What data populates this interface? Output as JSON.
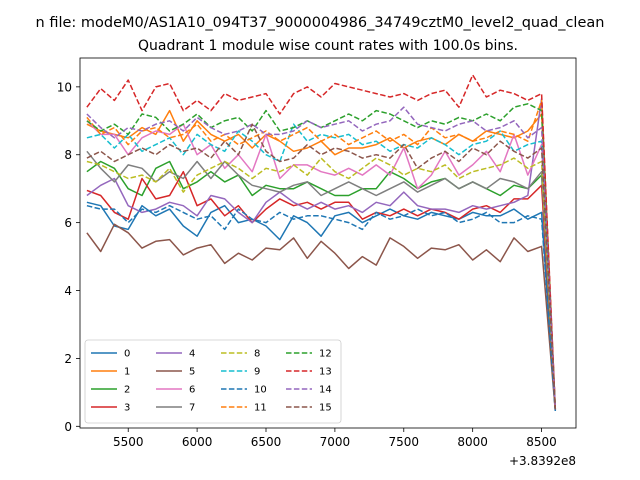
{
  "chart_data": {
    "type": "line",
    "suptitle": "n file: modeM0/AS1A10_094T37_9000004986_34749cztM0_level2_quad_clean",
    "title": "Quadrant 1 module wise count rates with 100.0s bins.",
    "xlabel": "",
    "ylabel": "",
    "x_offset_label": "+3.8392e8",
    "xlim": [
      5150,
      8750
    ],
    "ylim": [
      -0.05,
      10.85
    ],
    "xticks": [
      5500,
      6000,
      6500,
      7000,
      7500,
      8000,
      8500
    ],
    "yticks": [
      0,
      2,
      4,
      6,
      8,
      10
    ],
    "grid": false,
    "legend": {
      "placement": "lower-left",
      "columns": 4
    },
    "x": [
      5200,
      5300,
      5400,
      5500,
      5600,
      5700,
      5800,
      5900,
      6000,
      6100,
      6200,
      6300,
      6400,
      6500,
      6600,
      6700,
      6800,
      6900,
      7000,
      7100,
      7200,
      7300,
      7400,
      7500,
      7600,
      7700,
      7800,
      7900,
      8000,
      8100,
      8200,
      8300,
      8400,
      8500,
      8600
    ],
    "series": [
      {
        "name": "0",
        "color": "#1f77b4",
        "dash": false,
        "values": [
          6.6,
          6.5,
          5.9,
          5.8,
          6.5,
          6.2,
          6.4,
          5.9,
          5.6,
          6.3,
          6.5,
          6.0,
          6.1,
          5.9,
          5.5,
          6.2,
          6.0,
          5.6,
          6.2,
          6.3,
          6.0,
          6.2,
          6.4,
          6.2,
          6.1,
          6.3,
          6.2,
          6.1,
          6.3,
          6.2,
          6.2,
          6.4,
          6.1,
          6.3,
          0.45
        ]
      },
      {
        "name": "1",
        "color": "#ff7f0e",
        "dash": false,
        "values": [
          8.9,
          8.7,
          8.6,
          8.5,
          8.8,
          8.6,
          9.3,
          8.4,
          9.0,
          8.6,
          8.4,
          8.6,
          8.2,
          8.6,
          8.4,
          8.1,
          8.2,
          8.4,
          8.0,
          8.2,
          8.2,
          8.3,
          8.5,
          8.2,
          8.4,
          8.5,
          8.3,
          8.6,
          8.4,
          8.7,
          8.6,
          8.5,
          8.7,
          9.2,
          0.5
        ]
      },
      {
        "name": "2",
        "color": "#2ca02c",
        "dash": false,
        "values": [
          7.5,
          7.8,
          7.6,
          7.0,
          6.8,
          7.6,
          7.8,
          7.0,
          7.2,
          7.5,
          7.2,
          7.4,
          6.8,
          7.1,
          7.0,
          7.0,
          7.2,
          7.0,
          6.8,
          6.8,
          7.0,
          7.0,
          7.5,
          7.3,
          7.0,
          7.2,
          7.3,
          7.0,
          7.2,
          7.0,
          6.8,
          7.1,
          7.0,
          7.4,
          0.5
        ]
      },
      {
        "name": "3",
        "color": "#d62728",
        "dash": false,
        "values": [
          6.95,
          6.8,
          6.3,
          6.1,
          7.3,
          6.7,
          6.8,
          7.5,
          6.5,
          6.7,
          6.2,
          6.5,
          6.0,
          6.4,
          6.7,
          6.5,
          6.6,
          6.4,
          6.6,
          6.6,
          6.1,
          6.3,
          6.2,
          6.4,
          6.2,
          6.4,
          6.3,
          6.1,
          6.4,
          6.5,
          6.3,
          6.7,
          6.7,
          7.1,
          0.5
        ]
      },
      {
        "name": "4",
        "color": "#9467bd",
        "dash": false,
        "values": [
          6.8,
          7.1,
          7.3,
          6.5,
          6.3,
          6.4,
          6.6,
          6.5,
          6.2,
          6.8,
          6.7,
          6.3,
          6.0,
          6.6,
          6.9,
          6.6,
          6.4,
          6.6,
          6.4,
          6.5,
          6.3,
          6.6,
          6.5,
          6.9,
          6.5,
          6.4,
          6.4,
          6.3,
          6.5,
          6.4,
          6.5,
          6.6,
          6.8,
          9.65,
          0.5
        ]
      },
      {
        "name": "5",
        "color": "#8c564b",
        "dash": false,
        "values": [
          5.7,
          5.15,
          5.95,
          5.7,
          5.25,
          5.45,
          5.5,
          5.05,
          5.25,
          5.35,
          4.8,
          5.1,
          4.9,
          5.25,
          5.2,
          5.55,
          4.95,
          5.45,
          5.1,
          4.65,
          5.0,
          4.75,
          5.55,
          5.3,
          4.95,
          5.25,
          5.2,
          5.35,
          4.9,
          5.2,
          4.85,
          5.55,
          5.15,
          5.3,
          0.45
        ]
      },
      {
        "name": "6",
        "color": "#e377c2",
        "dash": false,
        "values": [
          9.0,
          8.6,
          8.6,
          8.0,
          8.5,
          8.7,
          8.6,
          8.9,
          8.0,
          8.3,
          7.6,
          8.0,
          7.5,
          8.6,
          7.3,
          7.7,
          7.7,
          7.5,
          7.4,
          7.6,
          7.4,
          7.7,
          7.4,
          8.2,
          7.0,
          7.4,
          8.1,
          7.4,
          7.7,
          8.1,
          7.5,
          8.6,
          7.4,
          8.3,
          0.5
        ]
      },
      {
        "name": "7",
        "color": "#7f7f7f",
        "dash": false,
        "values": [
          8.1,
          7.6,
          7.2,
          7.7,
          7.6,
          7.2,
          7.5,
          7.3,
          7.8,
          7.3,
          7.8,
          7.4,
          7.1,
          7.0,
          6.9,
          7.1,
          7.2,
          6.8,
          7.0,
          7.2,
          7.0,
          6.8,
          7.0,
          7.2,
          6.9,
          7.1,
          7.3,
          7.0,
          7.2,
          7.0,
          7.3,
          7.2,
          7.0,
          7.5,
          0.5
        ]
      },
      {
        "name": "8",
        "color": "#bcbd22",
        "dash": true,
        "values": [
          7.8,
          7.7,
          7.5,
          7.3,
          7.4,
          7.2,
          7.6,
          6.9,
          7.4,
          7.6,
          7.8,
          7.6,
          7.3,
          7.6,
          7.5,
          7.7,
          7.4,
          7.9,
          7.5,
          7.3,
          7.6,
          7.9,
          7.7,
          7.4,
          7.6,
          7.5,
          7.7,
          7.3,
          7.5,
          7.6,
          7.7,
          7.9,
          7.6,
          7.8,
          0.5
        ]
      },
      {
        "name": "9",
        "color": "#17becf",
        "dash": true,
        "values": [
          8.5,
          8.6,
          8.2,
          8.6,
          8.1,
          8.3,
          8.5,
          8.0,
          8.6,
          8.3,
          8.1,
          8.7,
          8.4,
          8.0,
          7.8,
          8.9,
          8.4,
          8.6,
          8.5,
          8.6,
          8.3,
          8.4,
          8.1,
          8.3,
          8.2,
          8.5,
          8.3,
          8.0,
          8.3,
          8.4,
          8.7,
          8.1,
          8.3,
          8.4,
          0.5
        ]
      },
      {
        "name": "10",
        "color": "#1f77b4",
        "dash": true,
        "values": [
          6.5,
          6.4,
          6.4,
          6.0,
          6.4,
          6.3,
          6.5,
          6.3,
          6.1,
          6.2,
          5.8,
          6.4,
          6.1,
          6.0,
          6.3,
          6.1,
          6.2,
          6.2,
          6.1,
          6.0,
          5.8,
          6.3,
          6.1,
          6.2,
          6.4,
          6.2,
          6.3,
          6.0,
          6.1,
          6.3,
          6.0,
          6.0,
          6.2,
          6.1,
          0.45
        ]
      },
      {
        "name": "11",
        "color": "#ff7f0e",
        "dash": true,
        "values": [
          9.1,
          8.6,
          8.8,
          8.3,
          8.7,
          8.8,
          8.5,
          8.6,
          8.9,
          8.4,
          8.6,
          8.3,
          8.5,
          8.7,
          8.4,
          8.6,
          8.8,
          8.4,
          8.6,
          8.3,
          8.5,
          8.7,
          8.4,
          8.6,
          8.3,
          8.8,
          8.5,
          8.6,
          8.4,
          8.5,
          8.7,
          8.6,
          8.4,
          9.6,
          0.5
        ]
      },
      {
        "name": "12",
        "color": "#2ca02c",
        "dash": true,
        "values": [
          9.0,
          8.7,
          8.9,
          8.6,
          9.2,
          9.1,
          8.7,
          8.9,
          9.2,
          8.8,
          9.0,
          9.1,
          8.7,
          9.3,
          8.7,
          8.8,
          9.0,
          8.8,
          9.0,
          9.2,
          9.0,
          9.3,
          9.2,
          9.0,
          8.8,
          9.0,
          8.9,
          9.1,
          9.0,
          9.2,
          9.0,
          9.4,
          9.5,
          9.3,
          0.5
        ]
      },
      {
        "name": "13",
        "color": "#d62728",
        "dash": true,
        "values": [
          9.4,
          9.95,
          9.6,
          10.2,
          9.3,
          10.0,
          10.1,
          9.3,
          9.6,
          9.3,
          9.8,
          9.6,
          9.7,
          9.8,
          9.2,
          9.8,
          10.0,
          9.7,
          10.1,
          10.0,
          9.9,
          9.8,
          9.7,
          9.8,
          9.6,
          9.8,
          9.9,
          9.4,
          10.35,
          9.7,
          9.9,
          9.8,
          9.6,
          9.8,
          0.5
        ]
      },
      {
        "name": "14",
        "color": "#9467bd",
        "dash": true,
        "values": [
          9.2,
          8.8,
          8.5,
          8.8,
          8.7,
          8.9,
          9.0,
          8.7,
          9.1,
          8.8,
          8.6,
          8.7,
          8.9,
          8.6,
          8.6,
          8.7,
          9.0,
          8.8,
          8.9,
          9.0,
          8.7,
          8.9,
          9.0,
          9.4,
          8.9,
          8.8,
          8.7,
          8.9,
          9.0,
          8.7,
          8.8,
          9.0,
          8.5,
          8.8,
          0.5
        ]
      },
      {
        "name": "15",
        "color": "#8c564b",
        "dash": true,
        "values": [
          7.9,
          8.1,
          7.8,
          8.0,
          8.2,
          8.0,
          8.3,
          8.1,
          8.2,
          7.9,
          8.4,
          8.0,
          8.9,
          8.1,
          7.8,
          7.9,
          8.3,
          8.0,
          8.2,
          8.1,
          7.9,
          8.0,
          7.9,
          8.3,
          7.6,
          7.9,
          8.1,
          7.8,
          8.2,
          8.0,
          8.4,
          8.1,
          7.9,
          8.2,
          0.5
        ]
      }
    ]
  }
}
